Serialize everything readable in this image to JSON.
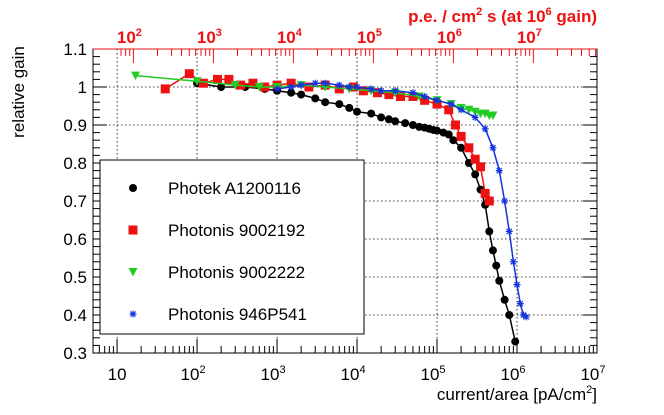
{
  "chart_data": {
    "type": "scatter",
    "x_scale": "log",
    "xlim": [
      5,
      10000000
    ],
    "ylim": [
      0.3,
      1.1
    ],
    "xlabel": "current/area [pA/cm",
    "xlabel_sup": "2",
    "xlabel_end": "]",
    "ylabel": "relative gain",
    "top_axis": {
      "label_part1": "p.e. / cm",
      "label_sup1": "2",
      "label_part2": " s (at 10",
      "label_sup2": "6",
      "label_part3": " gain)",
      "color": "#ee1111",
      "ticks": [
        {
          "exp": "2",
          "x_bottom": 16
        },
        {
          "exp": "3",
          "x_bottom": 160
        },
        {
          "exp": "4",
          "x_bottom": 1600
        },
        {
          "exp": "5",
          "x_bottom": 16000
        },
        {
          "exp": "6",
          "x_bottom": 160000
        },
        {
          "exp": "7",
          "x_bottom": 1600000
        }
      ]
    },
    "x_ticks": [
      {
        "base": "10",
        "exp": "",
        "value": 10
      },
      {
        "base": "10",
        "exp": "2",
        "value": 100
      },
      {
        "base": "10",
        "exp": "3",
        "value": 1000
      },
      {
        "base": "10",
        "exp": "4",
        "value": 10000
      },
      {
        "base": "10",
        "exp": "5",
        "value": 100000
      },
      {
        "base": "10",
        "exp": "6",
        "value": 1000000
      },
      {
        "base": "10",
        "exp": "7",
        "value": 10000000
      }
    ],
    "y_ticks": [
      "0.3",
      "0.4",
      "0.5",
      "0.6",
      "0.7",
      "0.8",
      "0.9",
      "1",
      "1.1"
    ],
    "grid": true,
    "legend_position": "bottom-left",
    "series": [
      {
        "name": "Photek A1200116",
        "color": "#000000",
        "marker": "circle",
        "x": [
          100,
          200,
          400,
          700,
          1000,
          1500,
          2000,
          3000,
          4000,
          6000,
          8000,
          10000,
          15000,
          20000,
          25000,
          30000,
          40000,
          50000,
          60000,
          70000,
          80000,
          90000,
          100000,
          120000,
          140000,
          160000,
          200000,
          250000,
          300000,
          350000,
          400000,
          450000,
          500000,
          550000,
          600000,
          700000,
          800000,
          950000
        ],
        "y": [
          1.01,
          1.0,
          1.0,
          0.995,
          0.99,
          0.985,
          0.98,
          0.97,
          0.96,
          0.955,
          0.945,
          0.935,
          0.93,
          0.92,
          0.915,
          0.91,
          0.905,
          0.9,
          0.895,
          0.893,
          0.89,
          0.887,
          0.885,
          0.88,
          0.875,
          0.86,
          0.84,
          0.8,
          0.77,
          0.73,
          0.69,
          0.62,
          0.57,
          0.53,
          0.49,
          0.44,
          0.4,
          0.33
        ]
      },
      {
        "name": "Photonis 9002192",
        "color": "#ee1111",
        "marker": "square",
        "x": [
          40,
          80,
          120,
          180,
          250,
          350,
          500,
          700,
          1000,
          1500,
          2500,
          4000,
          6000,
          9000,
          12000,
          18000,
          25000,
          35000,
          50000,
          70000,
          100000,
          140000,
          170000,
          200000,
          250000,
          300000,
          350000,
          400000,
          450000
        ],
        "y": [
          0.995,
          1.035,
          1.01,
          1.02,
          1.02,
          1.005,
          1.01,
          1.0,
          1.005,
          1.01,
          1.0,
          1.005,
          0.995,
          1.0,
          0.99,
          0.985,
          0.98,
          0.975,
          0.975,
          0.965,
          0.955,
          0.94,
          0.9,
          0.87,
          0.84,
          0.81,
          0.79,
          0.72,
          0.7
        ]
      },
      {
        "name": "Photonis 9002222",
        "color": "#22cc22",
        "marker": "triangle-down",
        "x": [
          17,
          100,
          300,
          600,
          1000,
          2000,
          4000,
          8000,
          15000,
          30000,
          60000,
          100000,
          150000,
          200000,
          250000,
          300000,
          350000,
          400000,
          450000,
          500000
        ],
        "y": [
          1.03,
          1.015,
          1.005,
          1.0,
          1.0,
          1.005,
          1.0,
          0.995,
          0.99,
          0.985,
          0.975,
          0.965,
          0.955,
          0.945,
          0.94,
          0.935,
          0.93,
          0.93,
          0.925,
          0.925
        ]
      },
      {
        "name": "Photonis 946P541",
        "color": "#1133dd",
        "marker": "star",
        "x": [
          1000,
          1500,
          2000,
          3000,
          4000,
          6000,
          8000,
          10000,
          15000,
          20000,
          30000,
          50000,
          70000,
          100000,
          150000,
          200000,
          300000,
          400000,
          500000,
          600000,
          700000,
          800000,
          900000,
          1000000,
          1100000,
          1200000,
          1300000
        ],
        "y": [
          0.995,
          1.0,
          1.005,
          1.01,
          1.01,
          1.005,
          1.0,
          1.0,
          0.995,
          0.99,
          0.99,
          0.985,
          0.975,
          0.965,
          0.955,
          0.94,
          0.92,
          0.89,
          0.84,
          0.78,
          0.7,
          0.62,
          0.54,
          0.48,
          0.43,
          0.4,
          0.395
        ]
      }
    ]
  }
}
